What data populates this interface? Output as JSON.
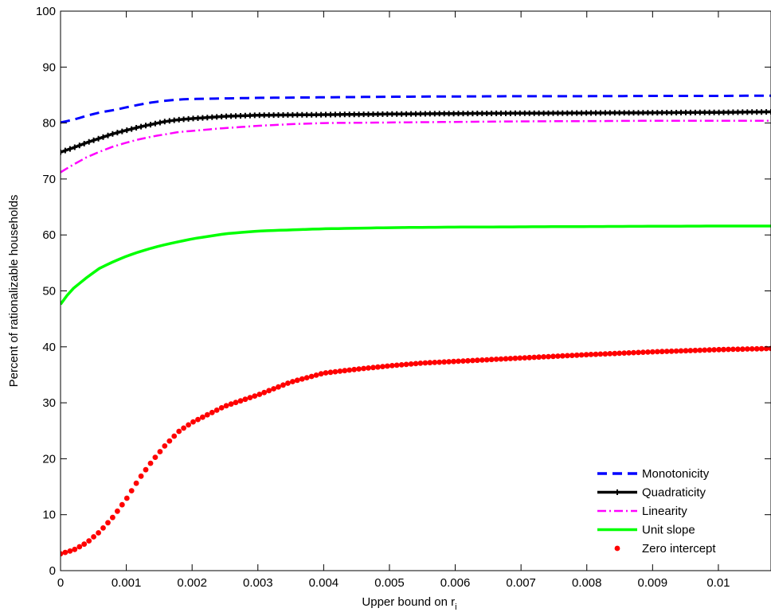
{
  "chart_data": {
    "type": "line",
    "xlabel": "Upper bound on r",
    "xlabel_subscript": "i",
    "ylabel": "Percent of rationalizable households",
    "xlim": [
      0,
      0.0108
    ],
    "ylim": [
      0,
      100
    ],
    "xticks": [
      0,
      0.001,
      0.002,
      0.003,
      0.004,
      0.005,
      0.006,
      0.007,
      0.008,
      0.009,
      0.01
    ],
    "xtick_labels": [
      "0",
      "0.001",
      "0.002",
      "0.003",
      "0.004",
      "0.005",
      "0.006",
      "0.007",
      "0.008",
      "0.009",
      "0.01"
    ],
    "yticks": [
      0,
      10,
      20,
      30,
      40,
      50,
      60,
      70,
      80,
      90,
      100
    ],
    "ytick_labels": [
      "0",
      "10",
      "20",
      "30",
      "40",
      "50",
      "60",
      "70",
      "80",
      "90",
      "100"
    ],
    "grid": false,
    "legend_position": "bottom-right",
    "series": [
      {
        "name": "Monotonicity",
        "color": "#0000ff",
        "style": "dashed",
        "x": [
          0,
          0.0002,
          0.0004,
          0.0006,
          0.0008,
          0.001,
          0.0012,
          0.0014,
          0.0016,
          0.0018,
          0.002,
          0.0025,
          0.003,
          0.004,
          0.005,
          0.006,
          0.007,
          0.008,
          0.009,
          0.01,
          0.0108
        ],
        "y": [
          80.1,
          80.6,
          81.3,
          81.9,
          82.3,
          82.8,
          83.3,
          83.7,
          84.0,
          84.2,
          84.3,
          84.4,
          84.5,
          84.6,
          84.7,
          84.75,
          84.8,
          84.8,
          84.85,
          84.85,
          84.9
        ]
      },
      {
        "name": "Quadraticity",
        "color": "#000000",
        "style": "solid-marker",
        "x": [
          0,
          0.0002,
          0.0004,
          0.0006,
          0.0008,
          0.001,
          0.0012,
          0.0014,
          0.0016,
          0.0018,
          0.002,
          0.0025,
          0.003,
          0.0035,
          0.004,
          0.005,
          0.006,
          0.007,
          0.008,
          0.009,
          0.01,
          0.0108
        ],
        "y": [
          74.8,
          75.6,
          76.5,
          77.3,
          78.1,
          78.7,
          79.3,
          79.8,
          80.3,
          80.6,
          80.8,
          81.2,
          81.4,
          81.45,
          81.5,
          81.6,
          81.7,
          81.75,
          81.8,
          81.85,
          81.9,
          82.0
        ]
      },
      {
        "name": "Linearity",
        "color": "#ff00ff",
        "style": "dashdot",
        "x": [
          0,
          0.0002,
          0.0004,
          0.0006,
          0.0008,
          0.001,
          0.0012,
          0.0014,
          0.0016,
          0.0018,
          0.002,
          0.0025,
          0.003,
          0.0035,
          0.004,
          0.005,
          0.006,
          0.007,
          0.008,
          0.009,
          0.01,
          0.0108
        ],
        "y": [
          71.2,
          72.6,
          73.9,
          74.9,
          75.8,
          76.5,
          77.1,
          77.6,
          78.0,
          78.4,
          78.6,
          79.1,
          79.5,
          79.8,
          80.0,
          80.1,
          80.2,
          80.3,
          80.35,
          80.4,
          80.4,
          80.4
        ]
      },
      {
        "name": "Unit slope",
        "color": "#00ff00",
        "style": "solid",
        "x": [
          0,
          0.0001,
          0.0002,
          0.0004,
          0.0006,
          0.0008,
          0.001,
          0.0012,
          0.0014,
          0.0016,
          0.0018,
          0.002,
          0.0025,
          0.003,
          0.0035,
          0.004,
          0.005,
          0.006,
          0.007,
          0.008,
          0.009,
          0.01,
          0.0108
        ],
        "y": [
          47.6,
          49.2,
          50.5,
          52.4,
          54.1,
          55.2,
          56.2,
          57.0,
          57.7,
          58.3,
          58.8,
          59.3,
          60.2,
          60.7,
          60.9,
          61.1,
          61.3,
          61.4,
          61.45,
          61.5,
          61.55,
          61.6,
          61.6
        ]
      },
      {
        "name": "Zero intercept",
        "color": "#ff0000",
        "style": "dots",
        "x": [
          0,
          0.0002,
          0.0004,
          0.0006,
          0.0008,
          0.001,
          0.0012,
          0.0014,
          0.0016,
          0.0018,
          0.002,
          0.0025,
          0.003,
          0.0035,
          0.004,
          0.0045,
          0.005,
          0.0055,
          0.006,
          0.007,
          0.008,
          0.009,
          0.01,
          0.0108
        ],
        "y": [
          3.0,
          3.7,
          5.0,
          7.0,
          9.6,
          12.8,
          16.5,
          19.7,
          22.5,
          24.9,
          26.5,
          29.4,
          31.4,
          33.7,
          35.3,
          36.0,
          36.6,
          37.1,
          37.4,
          38.0,
          38.6,
          39.1,
          39.5,
          39.7
        ]
      }
    ]
  }
}
